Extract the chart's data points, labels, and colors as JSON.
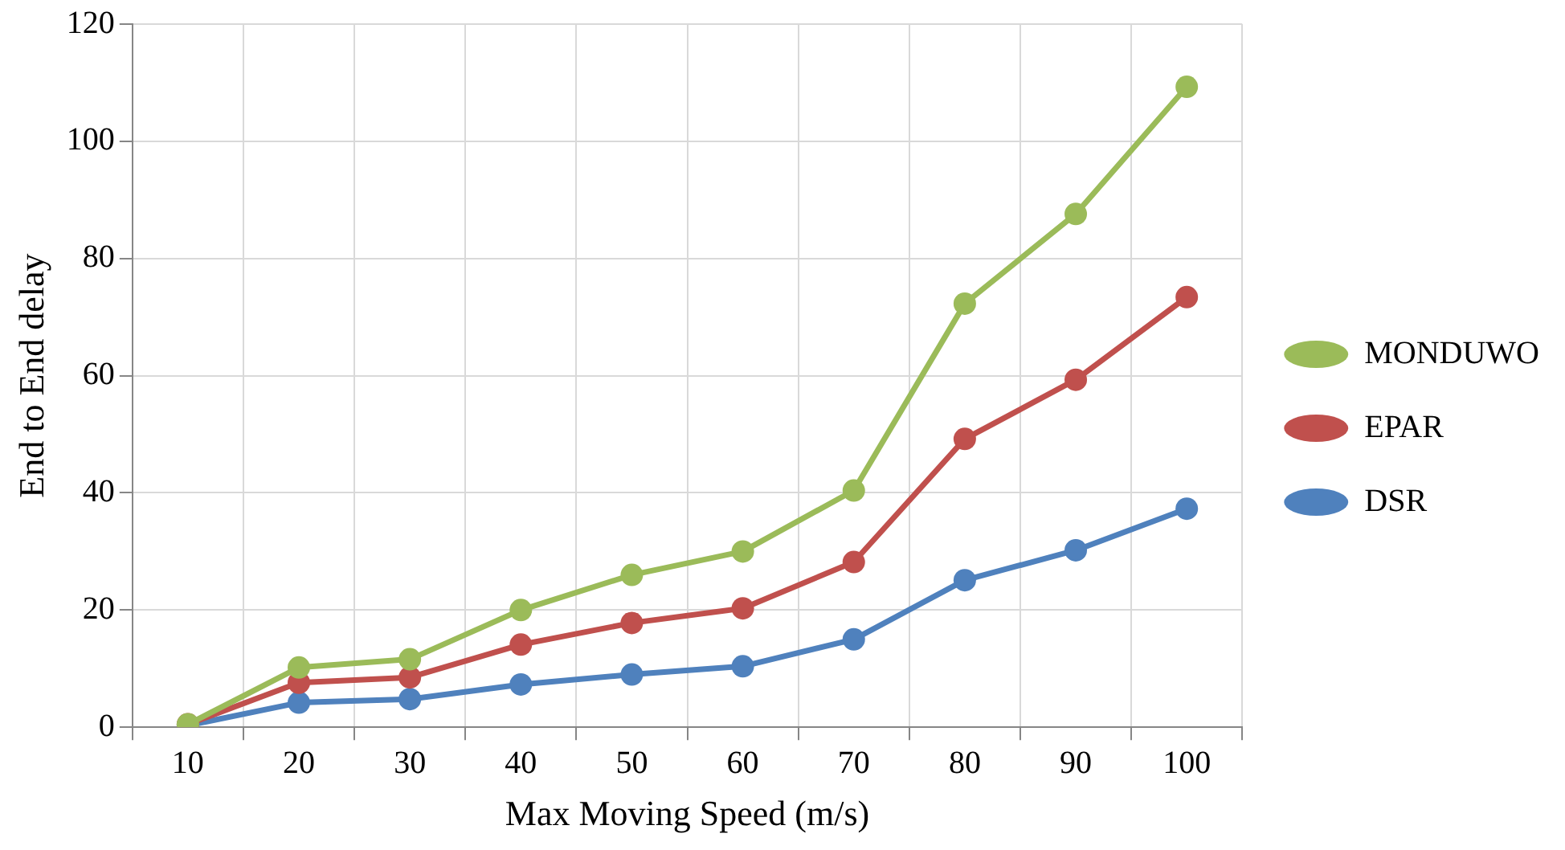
{
  "chart_data": {
    "type": "line",
    "xlabel": "Max Moving Speed (m/s)",
    "ylabel": "End to End delay",
    "categories": [
      "10",
      "20",
      "30",
      "40",
      "50",
      "60",
      "70",
      "80",
      "90",
      "100"
    ],
    "series": [
      {
        "name": "MONDUWO",
        "color": "#9bbb59",
        "values": [
          0.5,
          10.2,
          11.6,
          20,
          26,
          30,
          40.4,
          72.3,
          87.6,
          109.3
        ]
      },
      {
        "name": "EPAR",
        "color": "#c0504d",
        "values": [
          0.5,
          7.6,
          8.5,
          14.1,
          17.8,
          20.3,
          28.2,
          49.2,
          59.3,
          73.4
        ]
      },
      {
        "name": "DSR",
        "color": "#4f81bd",
        "values": [
          0.3,
          4.2,
          4.8,
          7.3,
          9,
          10.4,
          15,
          25.1,
          30.2,
          37.3
        ]
      }
    ],
    "ylim": [
      0,
      120
    ],
    "yticks": [
      0,
      20,
      40,
      60,
      80,
      100,
      120
    ],
    "grid": true,
    "legend": "right",
    "marker": "circle",
    "line_style": "solid"
  }
}
